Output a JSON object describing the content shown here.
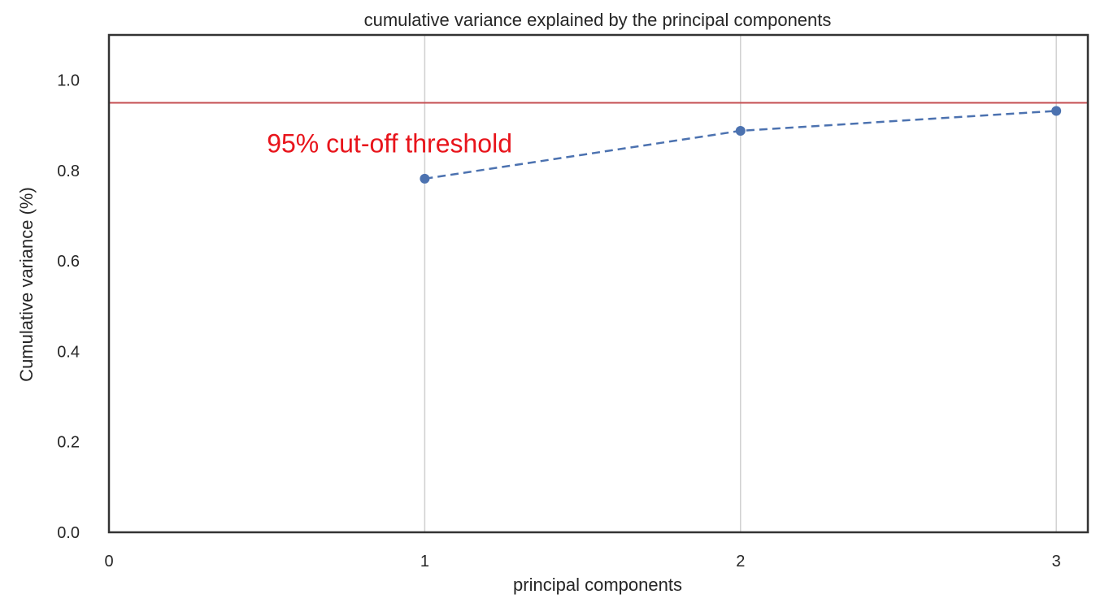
{
  "chart_data": {
    "type": "line",
    "title": "cumulative variance explained by the principal components",
    "xlabel": "principal components",
    "ylabel": "Cumulative variance (%)",
    "xlim": [
      0,
      3.1
    ],
    "ylim": [
      0,
      1.1
    ],
    "xticks": [
      0,
      1,
      2,
      3
    ],
    "xtick_labels": [
      "0",
      "1",
      "2",
      "3"
    ],
    "yticks": [
      0.0,
      0.2,
      0.4,
      0.6,
      0.8,
      1.0
    ],
    "ytick_labels": [
      "0.0",
      "0.2",
      "0.4",
      "0.6",
      "0.8",
      "1.0"
    ],
    "grid": "vertical",
    "series": [
      {
        "x": [
          1,
          2,
          3
        ],
        "values": [
          0.782,
          0.888,
          0.932
        ],
        "color": "#4c72b0",
        "line_style": "dashed",
        "marker": "circle"
      }
    ],
    "threshold": {
      "value": 0.95,
      "color": "#c44e52"
    },
    "annotation": {
      "text": "95% cut-off threshold",
      "x": 0.5,
      "y": 0.84,
      "color": "#e8141b"
    }
  }
}
